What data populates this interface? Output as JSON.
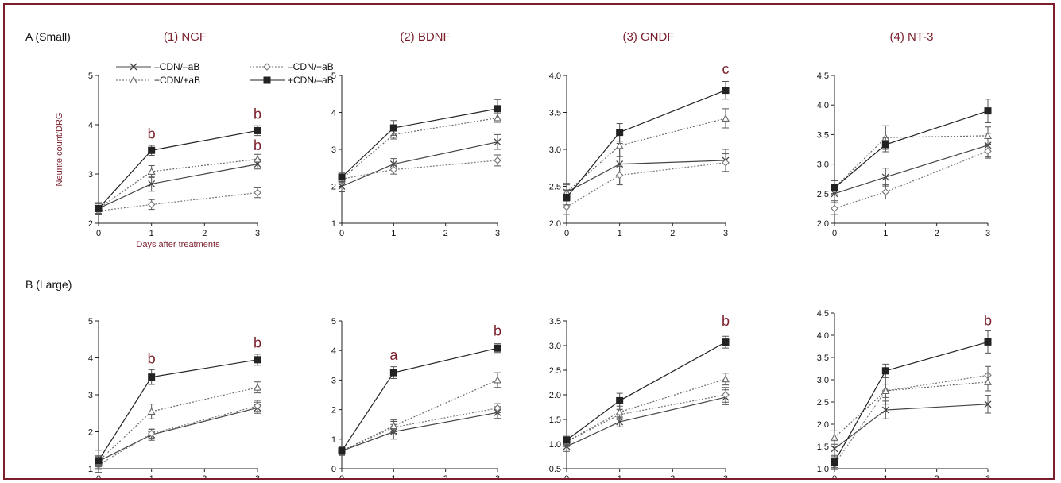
{
  "figure": {
    "row_labels": [
      "A (Small)",
      "B (Large)"
    ],
    "legend": [
      {
        "label": "–CDN/–aB",
        "marker": "x",
        "dash": "solid",
        "color": "#444444"
      },
      {
        "label": "–CDN/+aB",
        "marker": "diamond",
        "dash": "dot",
        "color": "#777777"
      },
      {
        "label": "+CDN/+aB",
        "marker": "triangle",
        "dash": "dot",
        "color": "#666666"
      },
      {
        "label": "+CDN/–aB",
        "marker": "square",
        "dash": "solid",
        "color": "#222222"
      }
    ]
  },
  "chart_data": [
    {
      "id": "A1",
      "type": "line",
      "title": "(1) NGF",
      "ylabel": "Neurite count/DRG",
      "xlabel": "Days after treatments",
      "x": [
        0,
        1,
        3
      ],
      "xticks": [
        0,
        1,
        2,
        3
      ],
      "ylim": [
        2,
        5
      ],
      "yticks": [
        "2",
        "3",
        "4",
        "5"
      ],
      "series": [
        {
          "values": [
            2.3,
            2.8,
            3.2
          ],
          "errors": [
            0.1,
            0.15,
            0.1
          ]
        },
        {
          "values": [
            2.25,
            2.38,
            2.62
          ],
          "errors": [
            0.08,
            0.1,
            0.1
          ]
        },
        {
          "values": [
            2.3,
            3.05,
            3.3
          ],
          "errors": [
            0.1,
            0.12,
            0.1
          ]
        },
        {
          "values": [
            2.3,
            3.48,
            3.88
          ],
          "errors": [
            0.12,
            0.1,
            0.1
          ]
        }
      ],
      "annotations": [
        {
          "text": "b",
          "x": 1,
          "y": 3.72
        },
        {
          "text": "b",
          "x": 3,
          "y": 4.12
        },
        {
          "text": "b",
          "x": 3,
          "y": 3.48
        }
      ]
    },
    {
      "id": "A2",
      "type": "line",
      "title": "(2) BDNF",
      "x": [
        0,
        1,
        3
      ],
      "xticks": [
        0,
        1,
        2,
        3
      ],
      "ylim": [
        1,
        5
      ],
      "yticks": [
        "1",
        "2",
        "3",
        "4",
        "5"
      ],
      "series": [
        {
          "values": [
            2.0,
            2.6,
            3.2
          ],
          "errors": [
            0.15,
            0.15,
            0.2
          ]
        },
        {
          "values": [
            2.2,
            2.45,
            2.7
          ],
          "errors": [
            0.1,
            0.12,
            0.15
          ]
        },
        {
          "values": [
            2.2,
            3.4,
            3.85
          ],
          "errors": [
            0.1,
            0.12,
            0.12
          ]
        },
        {
          "values": [
            2.25,
            3.58,
            4.1
          ],
          "errors": [
            0.12,
            0.2,
            0.25
          ]
        }
      ],
      "annotations": []
    },
    {
      "id": "A3",
      "type": "line",
      "title": "(3) GNDF",
      "x": [
        0,
        1,
        3
      ],
      "xticks": [
        0,
        1,
        2,
        3
      ],
      "ylim": [
        2.0,
        4.0
      ],
      "yticks": [
        "2.0",
        "2.5",
        "3.0",
        "3.5",
        "4.0"
      ],
      "series": [
        {
          "values": [
            2.42,
            2.8,
            2.85
          ],
          "errors": [
            0.12,
            0.28,
            0.15
          ]
        },
        {
          "values": [
            2.22,
            2.65,
            2.82
          ],
          "errors": [
            0.1,
            0.12,
            0.12
          ]
        },
        {
          "values": [
            2.42,
            3.05,
            3.42
          ],
          "errors": [
            0.1,
            0.15,
            0.13
          ]
        },
        {
          "values": [
            2.35,
            3.23,
            3.8
          ],
          "errors": [
            0.1,
            0.12,
            0.12
          ]
        }
      ],
      "annotations": [
        {
          "text": "c",
          "x": 3,
          "y": 4.02
        }
      ]
    },
    {
      "id": "A4",
      "type": "line",
      "title": "(4) NT-3",
      "x": [
        0,
        1,
        3
      ],
      "xticks": [
        0,
        1,
        2,
        3
      ],
      "ylim": [
        2.0,
        4.5
      ],
      "yticks": [
        "2.0",
        "2.5",
        "3.0",
        "3.5",
        "4.0",
        "4.5"
      ],
      "series": [
        {
          "values": [
            2.5,
            2.78,
            3.32
          ],
          "errors": [
            0.12,
            0.15,
            0.2
          ]
        },
        {
          "values": [
            2.25,
            2.53,
            3.22
          ],
          "errors": [
            0.1,
            0.12,
            0.12
          ]
        },
        {
          "values": [
            2.6,
            3.45,
            3.48
          ],
          "errors": [
            0.12,
            0.2,
            0.15
          ]
        },
        {
          "values": [
            2.6,
            3.33,
            3.9
          ],
          "errors": [
            0.12,
            0.12,
            0.2
          ]
        }
      ],
      "annotations": []
    },
    {
      "id": "B1",
      "type": "line",
      "title": "",
      "x": [
        0,
        1,
        3
      ],
      "xticks": [
        0,
        1,
        2,
        3
      ],
      "ylim": [
        1,
        5
      ],
      "yticks": [
        "1",
        "2",
        "3",
        "4",
        "5"
      ],
      "series": [
        {
          "values": [
            1.2,
            1.92,
            2.65
          ],
          "errors": [
            0.3,
            0.15,
            0.15
          ]
        },
        {
          "values": [
            1.1,
            1.95,
            2.7
          ],
          "errors": [
            0.12,
            0.12,
            0.15
          ]
        },
        {
          "values": [
            1.2,
            2.55,
            3.2
          ],
          "errors": [
            0.15,
            0.2,
            0.15
          ]
        },
        {
          "values": [
            1.22,
            3.48,
            3.95
          ],
          "errors": [
            0.12,
            0.2,
            0.15
          ]
        }
      ],
      "annotations": [
        {
          "text": "b",
          "x": 1,
          "y": 3.85
        },
        {
          "text": "b",
          "x": 3,
          "y": 4.28
        }
      ]
    },
    {
      "id": "B2",
      "type": "line",
      "title": "",
      "x": [
        0,
        1,
        3
      ],
      "xticks": [
        0,
        1,
        2,
        3
      ],
      "ylim": [
        0,
        5
      ],
      "yticks": [
        "0",
        "1",
        "2",
        "3",
        "4",
        "5"
      ],
      "series": [
        {
          "values": [
            0.6,
            1.25,
            1.9
          ],
          "errors": [
            0.15,
            0.25,
            0.2
          ]
        },
        {
          "values": [
            0.6,
            1.4,
            2.05
          ],
          "errors": [
            0.12,
            0.2,
            0.15
          ]
        },
        {
          "values": [
            0.6,
            1.45,
            3.0
          ],
          "errors": [
            0.12,
            0.2,
            0.25
          ]
        },
        {
          "values": [
            0.6,
            3.25,
            4.08
          ],
          "errors": [
            0.12,
            0.2,
            0.15
          ]
        }
      ],
      "annotations": [
        {
          "text": "a",
          "x": 1,
          "y": 3.68
        },
        {
          "text": "b",
          "x": 3,
          "y": 4.5
        }
      ]
    },
    {
      "id": "B3",
      "type": "line",
      "title": "",
      "x": [
        0,
        1,
        3
      ],
      "xticks": [
        0,
        1,
        2,
        3
      ],
      "ylim": [
        0.5,
        3.5
      ],
      "yticks": [
        "0.5",
        "1.0",
        "1.5",
        "2.0",
        "2.5",
        "3.0",
        "3.5"
      ],
      "series": [
        {
          "values": [
            0.95,
            1.45,
            1.95
          ],
          "errors": [
            0.1,
            0.1,
            0.15
          ]
        },
        {
          "values": [
            1.05,
            1.6,
            2.0
          ],
          "errors": [
            0.1,
            0.1,
            0.15
          ]
        },
        {
          "values": [
            1.05,
            1.65,
            2.32
          ],
          "errors": [
            0.1,
            0.12,
            0.12
          ]
        },
        {
          "values": [
            1.08,
            1.88,
            3.07
          ],
          "errors": [
            0.1,
            0.15,
            0.12
          ]
        }
      ],
      "annotations": [
        {
          "text": "b",
          "x": 3,
          "y": 3.4
        }
      ]
    },
    {
      "id": "B4",
      "type": "line",
      "title": "",
      "x": [
        0,
        1,
        3
      ],
      "xticks": [
        0,
        1,
        2,
        3
      ],
      "ylim": [
        1.0,
        4.5
      ],
      "yticks": [
        "1.0",
        "1.5",
        "2.0",
        "2.5",
        "3.0",
        "3.5",
        "4.0",
        "4.5"
      ],
      "series": [
        {
          "values": [
            1.45,
            2.32,
            2.45
          ],
          "errors": [
            0.15,
            0.2,
            0.2
          ]
        },
        {
          "values": [
            1.1,
            2.75,
            3.1
          ],
          "errors": [
            0.12,
            0.15,
            0.2
          ]
        },
        {
          "values": [
            1.7,
            2.75,
            2.95
          ],
          "errors": [
            0.15,
            0.3,
            0.2
          ]
        },
        {
          "values": [
            1.15,
            3.2,
            3.85
          ],
          "errors": [
            0.12,
            0.15,
            0.25
          ]
        }
      ],
      "annotations": [
        {
          "text": "b",
          "x": 3,
          "y": 4.22
        }
      ]
    }
  ]
}
